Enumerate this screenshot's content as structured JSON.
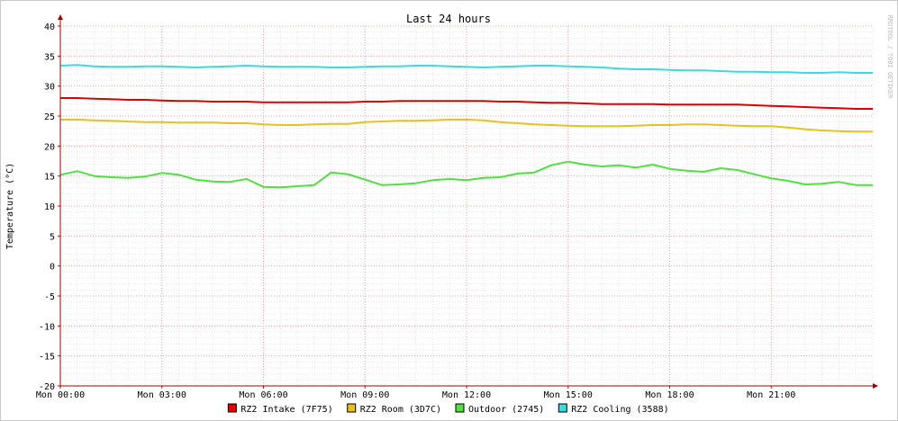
{
  "chart_data": {
    "type": "line",
    "title": "Last 24 hours",
    "ylabel": "Temperature (°C)",
    "xlabel": "",
    "watermark": "RRDTOOL / TOBI OETIKER",
    "ylim": [
      -20,
      40
    ],
    "yticks": [
      40,
      35,
      30,
      25,
      20,
      15,
      10,
      5,
      0,
      -5,
      -10,
      -15,
      -20
    ],
    "ytick_labels": [
      "40",
      "35",
      "30",
      "25",
      "20",
      "15",
      "10",
      "5",
      "0",
      "-5",
      "-10",
      "-15",
      "-20"
    ],
    "xlim": [
      0,
      24
    ],
    "xticks": [
      0,
      3,
      6,
      9,
      12,
      15,
      18,
      21
    ],
    "xtick_labels": [
      "Mon 00:00",
      "Mon 03:00",
      "Mon 06:00",
      "Mon 09:00",
      "Mon 12:00",
      "Mon 15:00",
      "Mon 18:00",
      "Mon 21:00"
    ],
    "grid": true,
    "legend_position": "bottom",
    "x": [
      0,
      0.5,
      1,
      1.5,
      2,
      2.5,
      3,
      3.5,
      4,
      4.5,
      5,
      5.5,
      6,
      6.5,
      7,
      7.5,
      8,
      8.5,
      9,
      9.5,
      10,
      10.5,
      11,
      11.5,
      12,
      12.5,
      13,
      13.5,
      14,
      14.5,
      15,
      15.5,
      16,
      16.5,
      17,
      17.5,
      18,
      18.5,
      19,
      19.5,
      20,
      20.5,
      21,
      21.5,
      22,
      22.5,
      23,
      23.5
    ],
    "series": [
      {
        "name": "RZ2 Intake (7F75)",
        "color": "#e00000",
        "values": [
          28.0,
          28.0,
          27.9,
          27.8,
          27.7,
          27.7,
          27.6,
          27.5,
          27.5,
          27.4,
          27.4,
          27.4,
          27.3,
          27.3,
          27.3,
          27.3,
          27.3,
          27.3,
          27.4,
          27.4,
          27.5,
          27.5,
          27.5,
          27.5,
          27.5,
          27.5,
          27.4,
          27.4,
          27.3,
          27.2,
          27.2,
          27.1,
          27.0,
          27.0,
          27.0,
          27.0,
          26.9,
          26.9,
          26.9,
          26.9,
          26.9,
          26.8,
          26.7,
          26.6,
          26.5,
          26.4,
          26.3,
          26.2
        ]
      },
      {
        "name": "RZ2 Room (3D7C)",
        "color": "#e8c020",
        "values": [
          24.4,
          24.4,
          24.3,
          24.2,
          24.1,
          24.0,
          24.0,
          23.9,
          23.9,
          23.9,
          23.8,
          23.8,
          23.6,
          23.5,
          23.5,
          23.6,
          23.7,
          23.7,
          24.0,
          24.1,
          24.2,
          24.2,
          24.3,
          24.4,
          24.4,
          24.3,
          24.0,
          23.8,
          23.6,
          23.5,
          23.4,
          23.3,
          23.3,
          23.3,
          23.4,
          23.5,
          23.5,
          23.6,
          23.6,
          23.5,
          23.4,
          23.3,
          23.3,
          23.1,
          22.8,
          22.6,
          22.5,
          22.4
        ]
      },
      {
        "name": "Outdoor (2745)",
        "color": "#50e040",
        "values": [
          15.2,
          15.8,
          15.0,
          14.8,
          14.7,
          14.9,
          15.5,
          15.2,
          14.4,
          14.1,
          14.0,
          14.5,
          13.2,
          13.1,
          13.3,
          13.5,
          15.6,
          15.3,
          14.4,
          13.5,
          13.6,
          13.8,
          14.3,
          14.5,
          14.3,
          14.7,
          14.8,
          15.4,
          15.6,
          16.8,
          17.4,
          16.9,
          16.6,
          16.8,
          16.4,
          16.9,
          16.2,
          15.9,
          15.7,
          16.3,
          16.0,
          15.3,
          14.6,
          14.2,
          13.6,
          13.7,
          14.0,
          13.5
        ]
      },
      {
        "name": "RZ2 Cooling (3588)",
        "color": "#40d8e0",
        "values": [
          33.4,
          33.5,
          33.3,
          33.2,
          33.2,
          33.3,
          33.3,
          33.2,
          33.1,
          33.2,
          33.3,
          33.4,
          33.3,
          33.2,
          33.2,
          33.2,
          33.1,
          33.1,
          33.2,
          33.3,
          33.3,
          33.4,
          33.4,
          33.3,
          33.2,
          33.1,
          33.2,
          33.3,
          33.4,
          33.4,
          33.3,
          33.2,
          33.1,
          32.9,
          32.8,
          32.8,
          32.7,
          32.6,
          32.6,
          32.5,
          32.4,
          32.4,
          32.3,
          32.3,
          32.2,
          32.2,
          32.3,
          32.2
        ]
      }
    ]
  }
}
